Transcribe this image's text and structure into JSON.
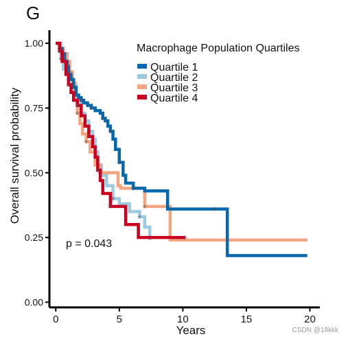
{
  "panel_label": "G",
  "watermark": "CSDN @18kkk",
  "chart_data": {
    "type": "line",
    "title": "",
    "xlabel": "Years",
    "ylabel": "Overall survival probability",
    "xlim": [
      -0.5,
      21
    ],
    "ylim": [
      -0.02,
      1.04
    ],
    "xticks": [
      0,
      5,
      10,
      15,
      20
    ],
    "xtick_labels": [
      "0",
      "5",
      "10",
      "15",
      "20"
    ],
    "yticks": [
      0,
      0.25,
      0.5,
      0.75,
      1.0
    ],
    "ytick_labels": [
      "0.00",
      "0.25",
      "0.50",
      "0.75",
      "1.00"
    ],
    "grid": false,
    "legend": {
      "title": "Macrophage Population Quartiles",
      "placement": "top-right"
    },
    "annotation": "p = 0.043",
    "series": [
      {
        "name": "Quartile 1",
        "color": "#0868ac",
        "x": [
          0,
          0.3,
          0.5,
          0.7,
          0.9,
          1.0,
          1.2,
          1.4,
          1.6,
          1.8,
          2.0,
          2.2,
          2.5,
          2.8,
          3.1,
          3.5,
          3.7,
          3.9,
          4.1,
          4.3,
          4.5,
          4.7,
          5.0,
          5.3,
          5.5,
          6.1,
          7.0,
          8.8,
          12.5,
          13.5,
          19.8
        ],
        "y": [
          1.0,
          0.98,
          0.96,
          0.93,
          0.91,
          0.88,
          0.86,
          0.83,
          0.8,
          0.79,
          0.78,
          0.77,
          0.76,
          0.75,
          0.74,
          0.73,
          0.71,
          0.7,
          0.68,
          0.66,
          0.63,
          0.59,
          0.54,
          0.49,
          0.46,
          0.44,
          0.43,
          0.36,
          0.36,
          0.18,
          0.18
        ]
      },
      {
        "name": "Quartile 2",
        "color": "#9ecae1",
        "x": [
          0,
          0.4,
          0.6,
          0.8,
          1.0,
          1.3,
          1.6,
          1.8,
          2.0,
          2.3,
          2.6,
          2.9,
          3.1,
          3.3,
          3.6,
          4.0,
          4.5,
          5.0,
          5.8,
          6.6,
          7.0,
          7.4
        ],
        "y": [
          1.0,
          0.94,
          0.9,
          0.88,
          0.86,
          0.84,
          0.8,
          0.78,
          0.73,
          0.7,
          0.66,
          0.63,
          0.58,
          0.53,
          0.49,
          0.45,
          0.4,
          0.38,
          0.35,
          0.33,
          0.29,
          0.24
        ]
      },
      {
        "name": "Quartile 3",
        "color": "#f4a582",
        "x": [
          0,
          0.3,
          0.6,
          0.9,
          1.1,
          1.3,
          1.5,
          1.7,
          1.9,
          2.1,
          2.4,
          2.7,
          3.1,
          3.5,
          4.9,
          5.1,
          7.0,
          9.0,
          19.8
        ],
        "y": [
          1.0,
          0.98,
          0.96,
          0.93,
          0.89,
          0.85,
          0.8,
          0.73,
          0.69,
          0.65,
          0.62,
          0.58,
          0.53,
          0.5,
          0.45,
          0.44,
          0.37,
          0.24,
          0.24
        ]
      },
      {
        "name": "Quartile 4",
        "color": "#ca0020",
        "x": [
          0,
          0.3,
          0.5,
          0.8,
          1.0,
          1.2,
          1.4,
          1.7,
          2.0,
          2.3,
          2.6,
          2.9,
          3.1,
          3.3,
          3.5,
          3.7,
          4.3,
          5.5,
          6.5,
          10.2
        ],
        "y": [
          1.0,
          0.97,
          0.93,
          0.88,
          0.84,
          0.81,
          0.78,
          0.76,
          0.72,
          0.68,
          0.64,
          0.6,
          0.56,
          0.51,
          0.47,
          0.42,
          0.37,
          0.3,
          0.25,
          0.25
        ]
      }
    ]
  }
}
